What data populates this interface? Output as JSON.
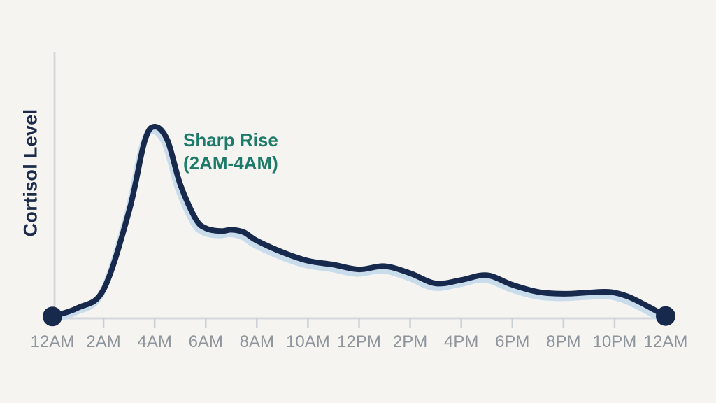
{
  "page": {
    "background": "#F5F4F1"
  },
  "colors": {
    "line": "#17294C",
    "line_shadow": "#C9DCEC",
    "axis": "#D4D8DD",
    "tick": "#CBD0D6",
    "tick_label": "#8F959D",
    "axis_label": "#1C2B4A",
    "annotation": "#1E7A69",
    "background": "#F5F4F1"
  },
  "chart_data": {
    "type": "line",
    "title": "",
    "xlabel": "",
    "ylabel": "Cortisol Level",
    "grid": false,
    "legend_position": "none",
    "x_range_hours": [
      0,
      24
    ],
    "y_range": [
      0,
      1
    ],
    "x_tick_labels": [
      "12AM",
      "2AM",
      "4AM",
      "6AM",
      "8AM",
      "10AM",
      "12PM",
      "2PM",
      "4PM",
      "6PM",
      "8PM",
      "10PM",
      "12AM"
    ],
    "annotation": {
      "line1": "Sharp Rise",
      "line2": "(2AM-4AM)",
      "points_at_hours": [
        2,
        4
      ]
    },
    "endpoint_markers": true,
    "series": [
      {
        "name": "Cortisol Level",
        "points": [
          [
            0,
            0.01
          ],
          [
            1,
            0.055
          ],
          [
            2,
            0.15
          ],
          [
            3,
            0.56
          ],
          [
            3.6,
            0.92
          ],
          [
            4,
            1.0
          ],
          [
            4.5,
            0.93
          ],
          [
            5,
            0.7
          ],
          [
            5.6,
            0.52
          ],
          [
            6,
            0.47
          ],
          [
            6.6,
            0.455
          ],
          [
            7,
            0.462
          ],
          [
            7.5,
            0.448
          ],
          [
            8,
            0.405
          ],
          [
            9,
            0.345
          ],
          [
            10,
            0.3
          ],
          [
            11,
            0.28
          ],
          [
            12,
            0.255
          ],
          [
            13,
            0.272
          ],
          [
            14,
            0.235
          ],
          [
            15,
            0.182
          ],
          [
            16,
            0.2
          ],
          [
            17,
            0.225
          ],
          [
            18,
            0.175
          ],
          [
            19,
            0.138
          ],
          [
            20,
            0.128
          ],
          [
            21,
            0.135
          ],
          [
            21.8,
            0.138
          ],
          [
            22.5,
            0.115
          ],
          [
            23.2,
            0.07
          ],
          [
            24,
            0.012
          ]
        ]
      }
    ]
  }
}
